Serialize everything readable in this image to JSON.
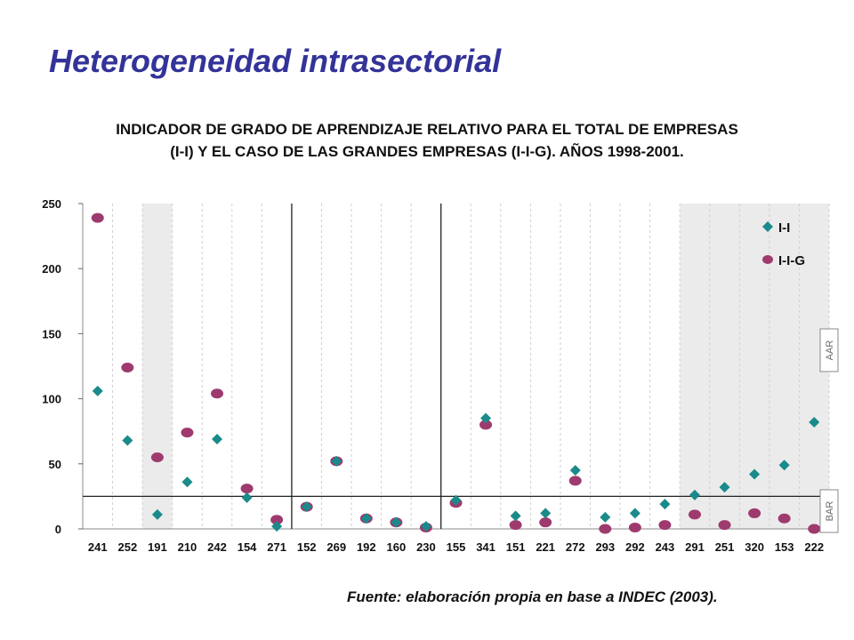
{
  "slide_title": "Heterogeneidad intrasectorial",
  "source": "Fuente: elaboración propia en base a INDEC (2003).",
  "chart_data": {
    "type": "scatter",
    "title_lines": [
      "INDICADOR DE GRADO DE APRENDIZAJE RELATIVO PARA EL TOTAL DE EMPRESAS",
      "(I-I) Y EL CASO DE LAS GRANDES EMPRESAS (I-I-G). AÑOS 1998-2001."
    ],
    "categories": [
      "241",
      "252",
      "191",
      "210",
      "242",
      "154",
      "271",
      "152",
      "269",
      "192",
      "160",
      "230",
      "155",
      "341",
      "151",
      "221",
      "272",
      "293",
      "292",
      "243",
      "291",
      "251",
      "320",
      "153",
      "222"
    ],
    "series": [
      {
        "name": "I-I",
        "marker": "diamond",
        "color": "#1a8a8a",
        "values": [
          106,
          68,
          11,
          36,
          69,
          24,
          2,
          17,
          52,
          8,
          5,
          2,
          22,
          85,
          10,
          12,
          45,
          9,
          12,
          19,
          26,
          32,
          42,
          49,
          82
        ]
      },
      {
        "name": "I-I-G",
        "marker": "circle",
        "color": "#9e3a6e",
        "values": [
          239,
          124,
          55,
          74,
          104,
          31,
          7,
          17,
          52,
          8,
          5,
          1,
          20,
          80,
          3,
          5,
          37,
          0,
          1,
          3,
          11,
          3,
          12,
          8,
          0
        ]
      }
    ],
    "ylim": [
      0,
      250
    ],
    "yticks": [
      0,
      50,
      100,
      150,
      200,
      250
    ],
    "horizontal_reference": 25,
    "vertical_separators_after": [
      "271",
      "230"
    ],
    "shaded_categories": [
      "191",
      "291",
      "251",
      "320",
      "153",
      "222"
    ],
    "side_labels": [
      "AAR",
      "BAR"
    ],
    "grid": "vertical dashed",
    "legend": "top-right"
  }
}
